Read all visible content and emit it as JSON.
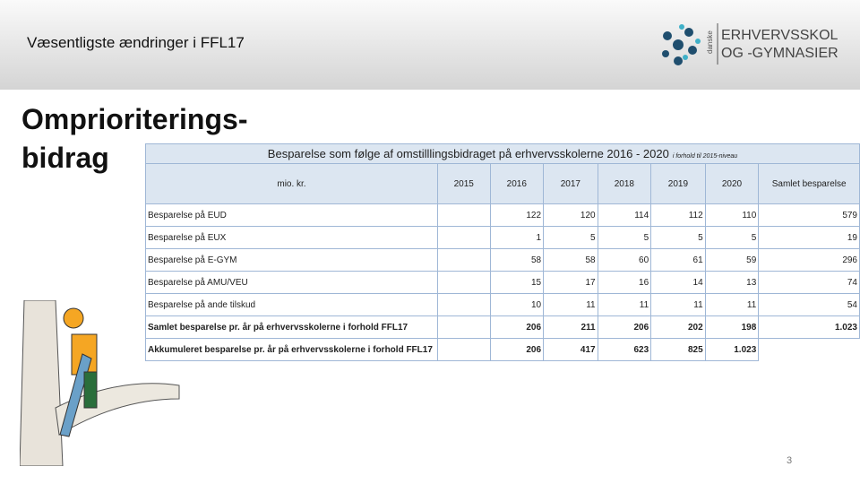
{
  "header": {
    "title": "Væsentligste ændringer i FFL17",
    "logo": {
      "small": "danske",
      "line1": "ERHVERVSSKOLER",
      "line2": "OG -GYMNASIER"
    }
  },
  "heading": [
    "Omprioriterings-",
    "bidrag"
  ],
  "table": {
    "title": "Besparelse som følge af omstilllingsbidraget på erhvervsskolerne 2016 - 2020",
    "subtitle": "i forhold til 2015-niveau",
    "columns": [
      "mio. kr.",
      "2015",
      "2016",
      "2017",
      "2018",
      "2019",
      "2020",
      "Samlet besparelse"
    ],
    "rows": [
      [
        "Besparelse på EUD",
        null,
        "122",
        "120",
        "114",
        "112",
        "110",
        "579"
      ],
      [
        "Besparelse på EUX",
        null,
        "1",
        "5",
        "5",
        "5",
        "5",
        "19"
      ],
      [
        "Besparelse på E-GYM",
        null,
        "58",
        "58",
        "60",
        "61",
        "59",
        "296"
      ],
      [
        "Besparelse på AMU/VEU",
        null,
        "15",
        "17",
        "16",
        "14",
        "13",
        "74"
      ],
      [
        "Besparelse på ande tilskud",
        null,
        "10",
        "11",
        "11",
        "11",
        "11",
        "54"
      ],
      [
        "Samlet besparelse pr. år på erhvervsskolerne i forhold FFL17",
        null,
        "206",
        "211",
        "206",
        "202",
        "198",
        "1.023"
      ],
      [
        "Akkumuleret besparelse pr. år på erhvervsskolerne i forhold FFL17",
        null,
        "206",
        "417",
        "623",
        "825",
        "1.023",
        null
      ]
    ]
  },
  "page_number": "3"
}
